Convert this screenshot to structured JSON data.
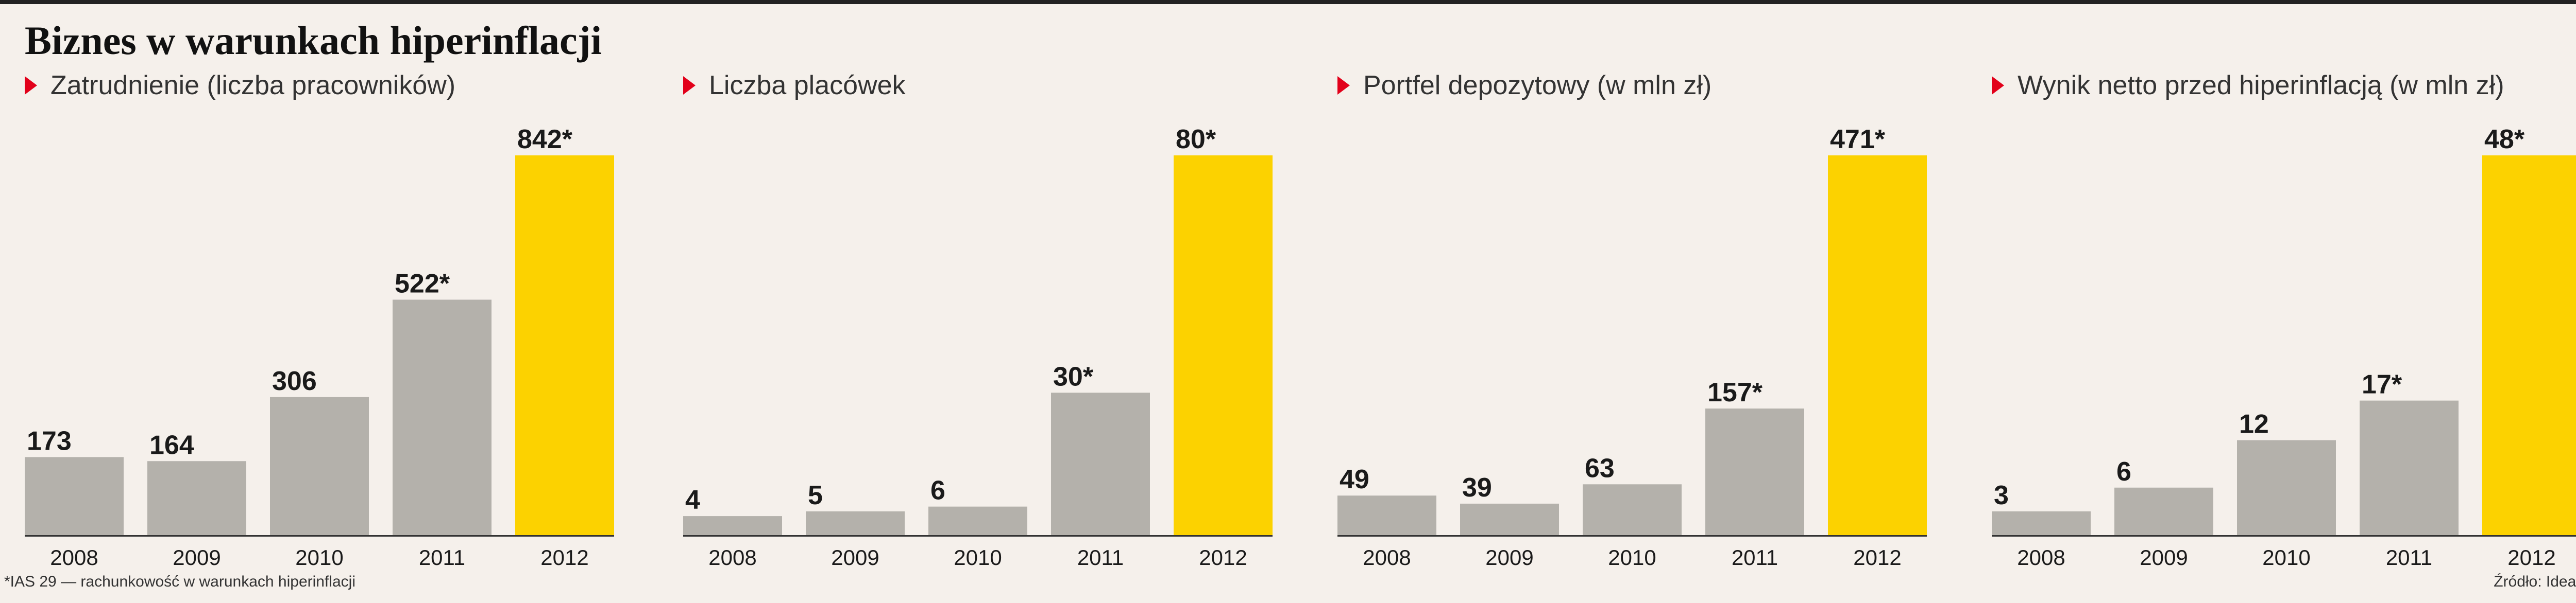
{
  "title": "Biznes w warunkach hiperinflacji",
  "footnote": "*IAS 29 — rachunkowość w warunkach hiperinflacji",
  "source": "Źródło: Idea Bank",
  "colors": {
    "bar": "#b4b1ab",
    "highlight": "#fcd200",
    "marker": "#e2001a",
    "baseline": "#333333",
    "background": "#f5f0eb"
  },
  "chart_data": [
    {
      "type": "bar",
      "title": "Zatrudnienie (liczba pracowników)",
      "categories": [
        "2008",
        "2009",
        "2010",
        "2011",
        "2012"
      ],
      "values": [
        173,
        164,
        306,
        522,
        842
      ],
      "labels": [
        "173",
        "164",
        "306",
        "522*",
        "842*"
      ],
      "highlight_index": 4
    },
    {
      "type": "bar",
      "title": "Liczba placówek",
      "categories": [
        "2008",
        "2009",
        "2010",
        "2011",
        "2012"
      ],
      "values": [
        4,
        5,
        6,
        30,
        80
      ],
      "labels": [
        "4",
        "5",
        "6",
        "30*",
        "80*"
      ],
      "highlight_index": 4
    },
    {
      "type": "bar",
      "title": "Portfel depozytowy (w mln zł)",
      "categories": [
        "2008",
        "2009",
        "2010",
        "2011",
        "2012"
      ],
      "values": [
        49,
        39,
        63,
        157,
        471
      ],
      "labels": [
        "49",
        "39",
        "63",
        "157*",
        "471*"
      ],
      "highlight_index": 4
    },
    {
      "type": "bar",
      "title": "Wynik netto przed hiperinflacją (w mln zł)",
      "categories": [
        "2008",
        "2009",
        "2010",
        "2011",
        "2012"
      ],
      "values": [
        3,
        6,
        12,
        17,
        48
      ],
      "labels": [
        "3",
        "6",
        "12",
        "17*",
        "48*"
      ],
      "highlight_index": 4
    }
  ]
}
